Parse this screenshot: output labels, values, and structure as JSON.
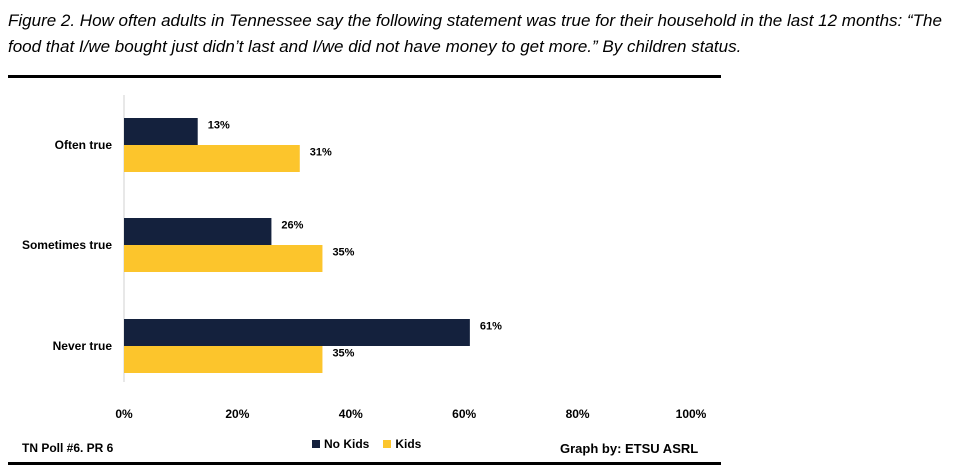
{
  "title": "Figure 2. How often adults in Tennessee say the following statement was true for their household in the last 12 months: “The food that I/we bought just didn’t last and I/we did not have money to get more.” By children status.",
  "footer": {
    "source": "TN Poll #6. PR 6",
    "credit": "Graph by: ETSU ASRL"
  },
  "colors": {
    "no_kids": "#14213d",
    "kids": "#fcc52c"
  },
  "chart_data": {
    "type": "bar",
    "orientation": "horizontal",
    "categories": [
      "Often true",
      "Sometimes true",
      "Never true"
    ],
    "series": [
      {
        "name": "No Kids",
        "values": [
          13,
          26,
          61
        ],
        "labels": [
          "13%",
          "26%",
          "61%"
        ]
      },
      {
        "name": "Kids",
        "values": [
          31,
          35,
          35
        ],
        "labels": [
          "31%",
          "35%",
          "35%"
        ]
      }
    ],
    "xlim": [
      0,
      100
    ],
    "x_ticks": [
      "0%",
      "20%",
      "40%",
      "60%",
      "80%",
      "100%"
    ],
    "legend": "bottom",
    "grid": false
  }
}
